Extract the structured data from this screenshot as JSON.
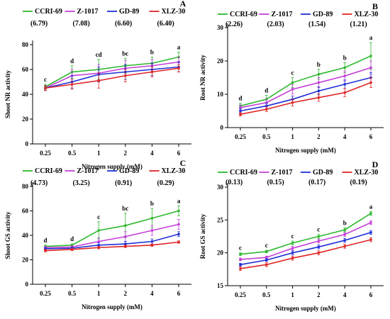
{
  "chart_data": [
    {
      "type": "line",
      "panel_label": "A",
      "title": "",
      "xlabel": "Nitrogen supply (mM)",
      "ylabel": "Shoot NR activity",
      "categories": [
        "0.25",
        "0.5",
        "1",
        "2",
        "4",
        "6"
      ],
      "ylim": [
        0,
        80
      ],
      "yticks": [
        0,
        20,
        40,
        60,
        80
      ],
      "grid": false,
      "legend_placement": "top",
      "series": [
        {
          "name": "CCRI-69",
          "legend_value": "(6.79)",
          "color": "#2db82d",
          "values": [
            46,
            58,
            60,
            63,
            65,
            70
          ],
          "errors": [
            2,
            5,
            8,
            6,
            5,
            4
          ]
        },
        {
          "name": "Z-1017",
          "legend_value": "(7.08)",
          "color": "#c43fd8",
          "values": [
            45,
            55,
            57,
            61,
            63,
            66
          ],
          "errors": [
            2,
            5,
            7,
            6,
            5,
            4
          ]
        },
        {
          "name": "GD-89",
          "legend_value": "(6.60)",
          "color": "#1f2fd6",
          "values": [
            45,
            50,
            56,
            58,
            60,
            62
          ],
          "errors": [
            2,
            5,
            6,
            6,
            5,
            4
          ]
        },
        {
          "name": "XLZ-30",
          "legend_value": "(6.40)",
          "color": "#e02424",
          "values": [
            45,
            48,
            51,
            55,
            58,
            61
          ],
          "errors": [
            2,
            4,
            6,
            5,
            4,
            3
          ]
        }
      ],
      "annotations": [
        "c",
        "d",
        "cd",
        "bc",
        "b",
        "a"
      ]
    },
    {
      "type": "line",
      "panel_label": "B",
      "title": "",
      "xlabel": "Nitrogen supply (mM)",
      "ylabel": "Root NR activity",
      "categories": [
        "0.25",
        "0.5",
        "1",
        "2",
        "4",
        "6"
      ],
      "ylim": [
        0,
        30
      ],
      "yticks": [
        0,
        10,
        20,
        30
      ],
      "grid": false,
      "legend_placement": "top",
      "series": [
        {
          "name": "CCRI-69",
          "legend_value": "(2.26)",
          "color": "#2db82d",
          "values": [
            6.5,
            8.5,
            13.5,
            16,
            18,
            21.5
          ],
          "errors": [
            0.8,
            1.2,
            1.5,
            1.5,
            1.5,
            4
          ]
        },
        {
          "name": "Z-1017",
          "legend_value": "(2.03)",
          "color": "#c43fd8",
          "values": [
            6,
            7.5,
            11.5,
            13.5,
            15.5,
            18
          ],
          "errors": [
            0.8,
            1,
            1.4,
            1.5,
            1.5,
            2
          ]
        },
        {
          "name": "GD-89",
          "legend_value": "(1.54)",
          "color": "#1f2fd6",
          "values": [
            5,
            6.5,
            8.5,
            11,
            13,
            15
          ],
          "errors": [
            0.6,
            0.8,
            1,
            1.2,
            1.3,
            1.5
          ]
        },
        {
          "name": "XLZ-30",
          "legend_value": "(1.21)",
          "color": "#e02424",
          "values": [
            4,
            5.5,
            7.5,
            9,
            10.5,
            13.5
          ],
          "errors": [
            0.5,
            0.7,
            1,
            1.1,
            1.2,
            1.5
          ]
        }
      ],
      "annotations": [
        "d",
        "d",
        "c",
        "b",
        "b",
        "a"
      ]
    },
    {
      "type": "line",
      "panel_label": "C",
      "title": "",
      "xlabel": "Nitrogen supply (mM)",
      "ylabel": "Shoot GS activity",
      "categories": [
        "0.25",
        "0.5",
        "1",
        "2",
        "4",
        "6"
      ],
      "ylim": [
        0,
        80
      ],
      "yticks": [
        0,
        20,
        40,
        60,
        80
      ],
      "grid": false,
      "legend_placement": "top",
      "series": [
        {
          "name": "CCRI-69",
          "legend_value": "(4.73)",
          "color": "#2db82d",
          "values": [
            31,
            32,
            44,
            48,
            54,
            60
          ],
          "errors": [
            1,
            1,
            7,
            10,
            8,
            4
          ]
        },
        {
          "name": "Z-1017",
          "legend_value": "(3.25)",
          "color": "#c43fd8",
          "values": [
            30,
            30.5,
            35,
            39,
            44,
            49
          ],
          "errors": [
            1,
            1,
            3,
            4,
            4,
            4
          ]
        },
        {
          "name": "GD-89",
          "legend_value": "(0.91)",
          "color": "#1f2fd6",
          "values": [
            29,
            29.5,
            32,
            33,
            35,
            41
          ],
          "errors": [
            1,
            1,
            2,
            2,
            2,
            2
          ]
        },
        {
          "name": "XLZ-30",
          "legend_value": "(0.29)",
          "color": "#e02424",
          "values": [
            27.5,
            28.5,
            30,
            31,
            32,
            34.5
          ],
          "errors": [
            1,
            1,
            1,
            1,
            1,
            1
          ]
        }
      ],
      "annotations": [
        "d",
        "d",
        "c",
        "bc",
        "b",
        "a"
      ]
    },
    {
      "type": "line",
      "panel_label": "D",
      "title": "",
      "xlabel": "Nitrogen supply (mM)",
      "ylabel": "Root GS activity",
      "categories": [
        "0.25",
        "0.5",
        "1",
        "2",
        "4",
        "6"
      ],
      "ylim": [
        15,
        30
      ],
      "yticks": [
        15,
        20,
        25,
        30
      ],
      "grid": false,
      "legend_placement": "top",
      "series": [
        {
          "name": "CCRI-69",
          "legend_value": "(0.13)",
          "color": "#2db82d",
          "values": [
            19.8,
            20.2,
            21.5,
            22.5,
            23.5,
            26
          ],
          "errors": [
            0.2,
            0.2,
            0.3,
            0.3,
            0.3,
            0.3
          ]
        },
        {
          "name": "Z-1017",
          "legend_value": "(0.15)",
          "color": "#c43fd8",
          "values": [
            19,
            19.3,
            20.7,
            21.8,
            22.8,
            24.6
          ],
          "errors": [
            0.2,
            0.2,
            0.3,
            0.3,
            0.3,
            0.3
          ]
        },
        {
          "name": "GD-89",
          "legend_value": "(0.17)",
          "color": "#1f2fd6",
          "values": [
            18.2,
            18.9,
            20,
            20.9,
            21.9,
            23.1
          ],
          "errors": [
            0.2,
            0.2,
            0.3,
            0.3,
            0.3,
            0.3
          ]
        },
        {
          "name": "XLZ-30",
          "legend_value": "(0.19)",
          "color": "#e02424",
          "values": [
            17.6,
            18.2,
            19.2,
            20,
            21,
            22
          ],
          "errors": [
            0.3,
            0.3,
            0.3,
            0.3,
            0.3,
            0.3
          ]
        }
      ],
      "annotations": [
        "c",
        "c",
        "c",
        "c",
        "b",
        "a"
      ]
    }
  ]
}
